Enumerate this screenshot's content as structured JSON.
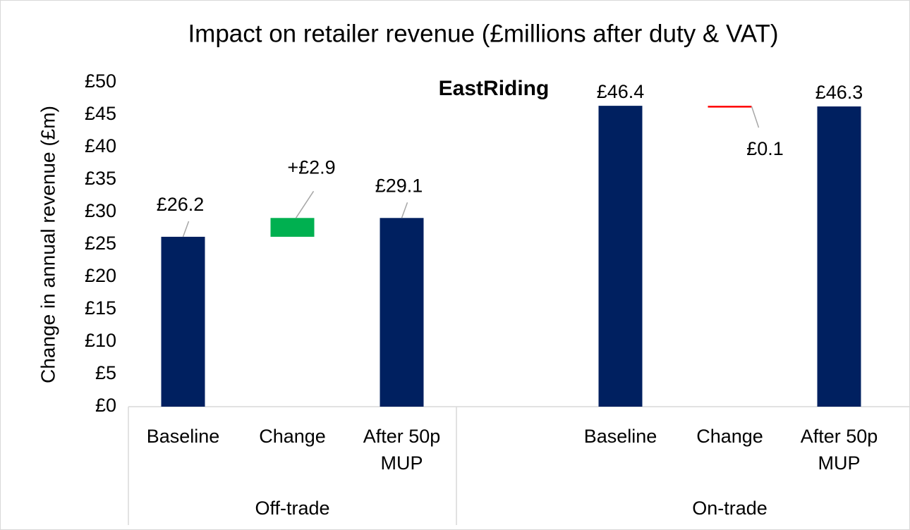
{
  "chart_data": {
    "type": "waterfall",
    "title": "Impact on retailer revenue (£millions after duty & VAT)",
    "annotation": "EastRiding",
    "y_label": "Change in annual revenue (£m)",
    "ylim": [
      0,
      50
    ],
    "yticks": [
      {
        "value": 0,
        "label": "£0"
      },
      {
        "value": 5,
        "label": "£5"
      },
      {
        "value": 10,
        "label": "£10"
      },
      {
        "value": 15,
        "label": "£15"
      },
      {
        "value": 20,
        "label": "£20"
      },
      {
        "value": 25,
        "label": "£25"
      },
      {
        "value": 30,
        "label": "£30"
      },
      {
        "value": 35,
        "label": "£35"
      },
      {
        "value": 40,
        "label": "£40"
      },
      {
        "value": 45,
        "label": "£45"
      },
      {
        "value": 50,
        "label": "£50"
      }
    ],
    "colors": {
      "total": "#002060",
      "increase": "#00b050",
      "decrease": "#ff0000"
    },
    "groups": [
      {
        "name": "Off-trade",
        "categories": [
          "Baseline",
          "Change",
          "After 50p MUP"
        ],
        "measure": [
          "total",
          "relative",
          "total"
        ],
        "values": [
          26.2,
          2.9,
          29.1
        ],
        "value_labels": [
          "£26.2",
          "+£2.9",
          "£29.1"
        ]
      },
      {
        "name": "On-trade",
        "categories": [
          "Baseline",
          "Change",
          "After 50p MUP"
        ],
        "measure": [
          "total",
          "relative",
          "total"
        ],
        "values": [
          46.4,
          -0.1,
          46.3
        ],
        "value_labels": [
          "£46.4",
          "£0.1",
          "£46.3"
        ]
      }
    ]
  }
}
